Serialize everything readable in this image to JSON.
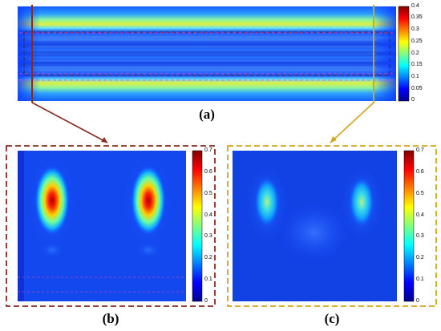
{
  "figure": {
    "panels": [
      {
        "id": "a",
        "label": "(a)",
        "colorbar": {
          "ticks": [
            "0.4",
            "0.35",
            "0.3",
            "0.25",
            "0.2",
            "0.15",
            "0.1",
            "0.05",
            "0"
          ],
          "min": 0,
          "max": 0.4
        }
      },
      {
        "id": "b",
        "label": "(b)",
        "frame_color": "#8b2a1e",
        "colorbar": {
          "ticks": [
            "0.7",
            "0.6",
            "0.5",
            "0.4",
            "0.3",
            "0.2",
            "0.1",
            "0"
          ],
          "min": 0,
          "max": 0.7
        }
      },
      {
        "id": "c",
        "label": "(c)",
        "frame_color": "#d4a418",
        "colorbar": {
          "ticks": [
            "0.7",
            "0.6",
            "0.5",
            "0.4",
            "0.3",
            "0.2",
            "0.1",
            "0"
          ],
          "min": 0,
          "max": 0.7
        }
      }
    ],
    "colormap": "jet",
    "colors": {
      "dark_red_marker": "#8b2a1e",
      "gold_marker": "#d4a418",
      "pink_dashes": "#ff3fb0"
    }
  }
}
